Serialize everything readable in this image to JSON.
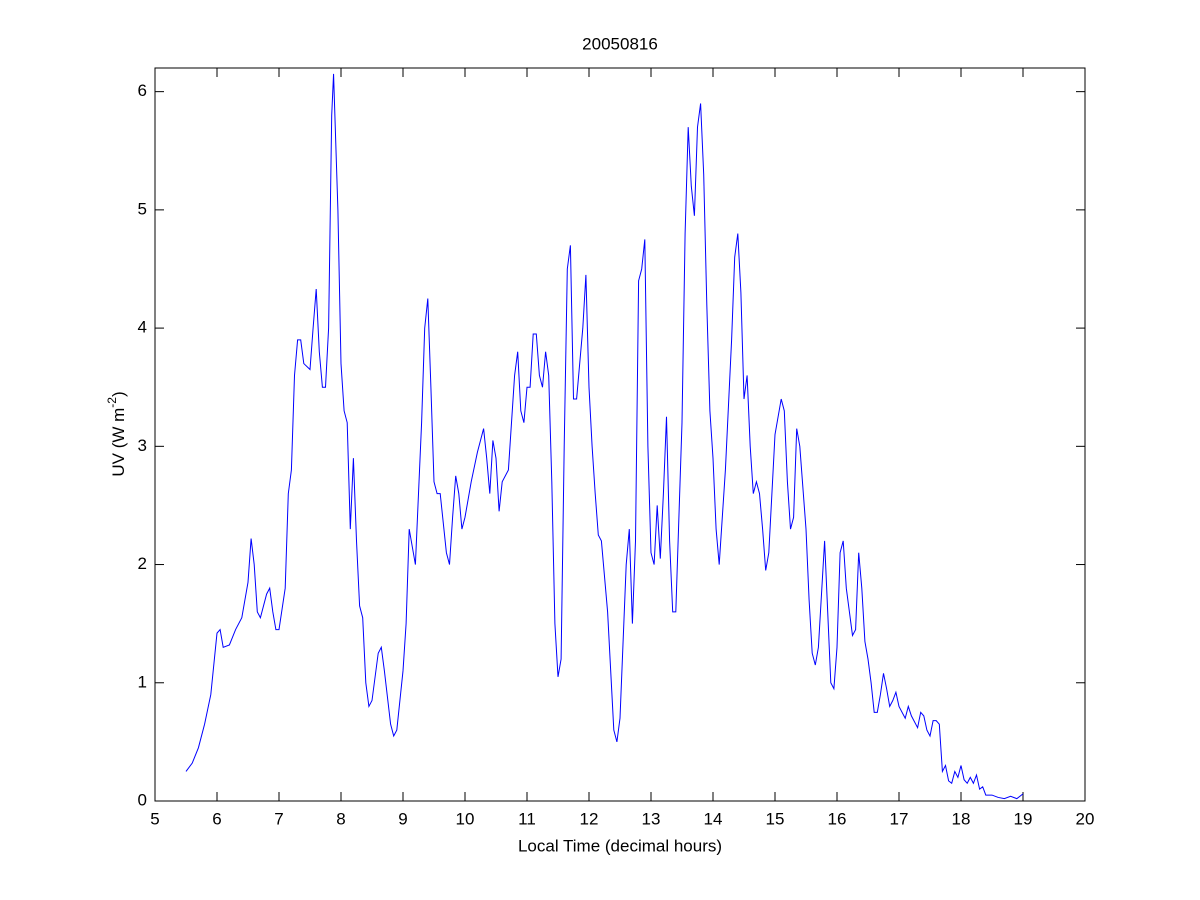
{
  "chart_data": {
    "type": "line",
    "title": "20050816",
    "xlabel": "Local Time (decimal hours)",
    "ylabel": {
      "text": "UV (W m",
      "superscript": "-2",
      "suffix": ")"
    },
    "color": "#0000ff",
    "xlim": [
      5,
      20
    ],
    "ylim": [
      0,
      6.2
    ],
    "xticks": [
      5,
      6,
      7,
      8,
      9,
      10,
      11,
      12,
      13,
      14,
      15,
      16,
      17,
      18,
      19,
      20
    ],
    "yticks": [
      0,
      1,
      2,
      3,
      4,
      5,
      6
    ],
    "x": [
      5.5,
      5.6,
      5.7,
      5.8,
      5.9,
      6.0,
      6.05,
      6.1,
      6.2,
      6.3,
      6.4,
      6.5,
      6.55,
      6.6,
      6.65,
      6.7,
      6.8,
      6.85,
      6.9,
      6.95,
      7.0,
      7.1,
      7.15,
      7.2,
      7.25,
      7.3,
      7.35,
      7.4,
      7.5,
      7.55,
      7.6,
      7.65,
      7.7,
      7.75,
      7.8,
      7.85,
      7.88,
      7.95,
      8.0,
      8.05,
      8.1,
      8.15,
      8.2,
      8.25,
      8.3,
      8.35,
      8.4,
      8.45,
      8.5,
      8.6,
      8.65,
      8.7,
      8.8,
      8.85,
      8.9,
      9.0,
      9.05,
      9.1,
      9.2,
      9.3,
      9.35,
      9.4,
      9.45,
      9.5,
      9.55,
      9.6,
      9.7,
      9.75,
      9.8,
      9.85,
      9.9,
      9.95,
      10.0,
      10.1,
      10.2,
      10.3,
      10.35,
      10.4,
      10.45,
      10.5,
      10.55,
      10.6,
      10.7,
      10.8,
      10.85,
      10.9,
      10.95,
      11.0,
      11.05,
      11.1,
      11.15,
      11.2,
      11.25,
      11.3,
      11.35,
      11.4,
      11.45,
      11.5,
      11.55,
      11.6,
      11.65,
      11.7,
      11.75,
      11.8,
      11.9,
      11.95,
      12.0,
      12.05,
      12.1,
      12.15,
      12.2,
      12.3,
      12.4,
      12.45,
      12.5,
      12.6,
      12.65,
      12.7,
      12.75,
      12.8,
      12.85,
      12.9,
      12.95,
      13.0,
      13.05,
      13.1,
      13.15,
      13.2,
      13.25,
      13.3,
      13.35,
      13.4,
      13.5,
      13.55,
      13.6,
      13.65,
      13.7,
      13.75,
      13.8,
      13.85,
      13.9,
      13.95,
      14.0,
      14.05,
      14.1,
      14.2,
      14.3,
      14.35,
      14.4,
      14.45,
      14.5,
      14.55,
      14.6,
      14.65,
      14.7,
      14.75,
      14.8,
      14.85,
      14.9,
      14.95,
      15.0,
      15.1,
      15.15,
      15.2,
      15.25,
      15.3,
      15.35,
      15.4,
      15.5,
      15.55,
      15.6,
      15.65,
      15.7,
      15.8,
      15.85,
      15.9,
      15.95,
      16.0,
      16.05,
      16.1,
      16.15,
      16.2,
      16.25,
      16.3,
      16.35,
      16.4,
      16.45,
      16.5,
      16.55,
      16.6,
      16.65,
      16.7,
      16.75,
      16.8,
      16.85,
      16.9,
      16.95,
      17.0,
      17.1,
      17.15,
      17.2,
      17.3,
      17.35,
      17.4,
      17.45,
      17.5,
      17.55,
      17.6,
      17.65,
      17.7,
      17.75,
      17.8,
      17.85,
      17.9,
      17.95,
      18.0,
      18.05,
      18.1,
      18.15,
      18.2,
      18.25,
      18.3,
      18.35,
      18.4,
      18.5,
      18.6,
      18.7,
      18.8,
      18.9,
      19.0
    ],
    "values": [
      0.25,
      0.32,
      0.45,
      0.65,
      0.9,
      1.42,
      1.45,
      1.3,
      1.32,
      1.45,
      1.55,
      1.85,
      2.22,
      2.0,
      1.6,
      1.55,
      1.75,
      1.8,
      1.6,
      1.45,
      1.45,
      1.8,
      2.6,
      2.8,
      3.6,
      3.9,
      3.9,
      3.7,
      3.65,
      4.0,
      4.33,
      3.8,
      3.5,
      3.5,
      4.0,
      5.8,
      6.15,
      5.0,
      3.7,
      3.3,
      3.2,
      2.3,
      2.9,
      2.2,
      1.65,
      1.55,
      1.0,
      0.8,
      0.85,
      1.25,
      1.3,
      1.1,
      0.65,
      0.55,
      0.6,
      1.1,
      1.5,
      2.3,
      2.0,
      3.2,
      4.0,
      4.25,
      3.5,
      2.7,
      2.6,
      2.6,
      2.1,
      2.0,
      2.4,
      2.75,
      2.6,
      2.3,
      2.4,
      2.7,
      2.95,
      3.15,
      2.9,
      2.6,
      3.05,
      2.9,
      2.45,
      2.7,
      2.8,
      3.6,
      3.8,
      3.3,
      3.2,
      3.5,
      3.5,
      3.95,
      3.95,
      3.6,
      3.5,
      3.8,
      3.6,
      2.7,
      1.5,
      1.05,
      1.2,
      3.0,
      4.5,
      4.7,
      3.4,
      3.4,
      4.0,
      4.45,
      3.5,
      3.0,
      2.6,
      2.25,
      2.2,
      1.6,
      0.6,
      0.5,
      0.7,
      2.0,
      2.3,
      1.5,
      2.2,
      4.4,
      4.5,
      4.75,
      3.0,
      2.1,
      2.0,
      2.5,
      2.05,
      2.6,
      3.25,
      2.2,
      1.6,
      1.6,
      3.2,
      4.8,
      5.7,
      5.2,
      4.95,
      5.7,
      5.9,
      5.3,
      4.2,
      3.3,
      2.9,
      2.3,
      2.0,
      2.8,
      3.9,
      4.6,
      4.8,
      4.3,
      3.4,
      3.6,
      3.0,
      2.6,
      2.7,
      2.6,
      2.3,
      1.95,
      2.1,
      2.6,
      3.1,
      3.4,
      3.3,
      2.7,
      2.3,
      2.4,
      3.15,
      3.0,
      2.3,
      1.7,
      1.25,
      1.15,
      1.3,
      2.2,
      1.6,
      1.0,
      0.95,
      1.3,
      2.1,
      2.2,
      1.8,
      1.6,
      1.4,
      1.45,
      2.1,
      1.8,
      1.35,
      1.2,
      1.0,
      0.75,
      0.75,
      0.9,
      1.08,
      0.95,
      0.8,
      0.85,
      0.92,
      0.8,
      0.7,
      0.8,
      0.72,
      0.62,
      0.75,
      0.72,
      0.6,
      0.55,
      0.68,
      0.68,
      0.65,
      0.25,
      0.3,
      0.17,
      0.15,
      0.25,
      0.2,
      0.3,
      0.18,
      0.15,
      0.2,
      0.15,
      0.22,
      0.1,
      0.12,
      0.05,
      0.05,
      0.03,
      0.02,
      0.04,
      0.02,
      0.06
    ]
  }
}
